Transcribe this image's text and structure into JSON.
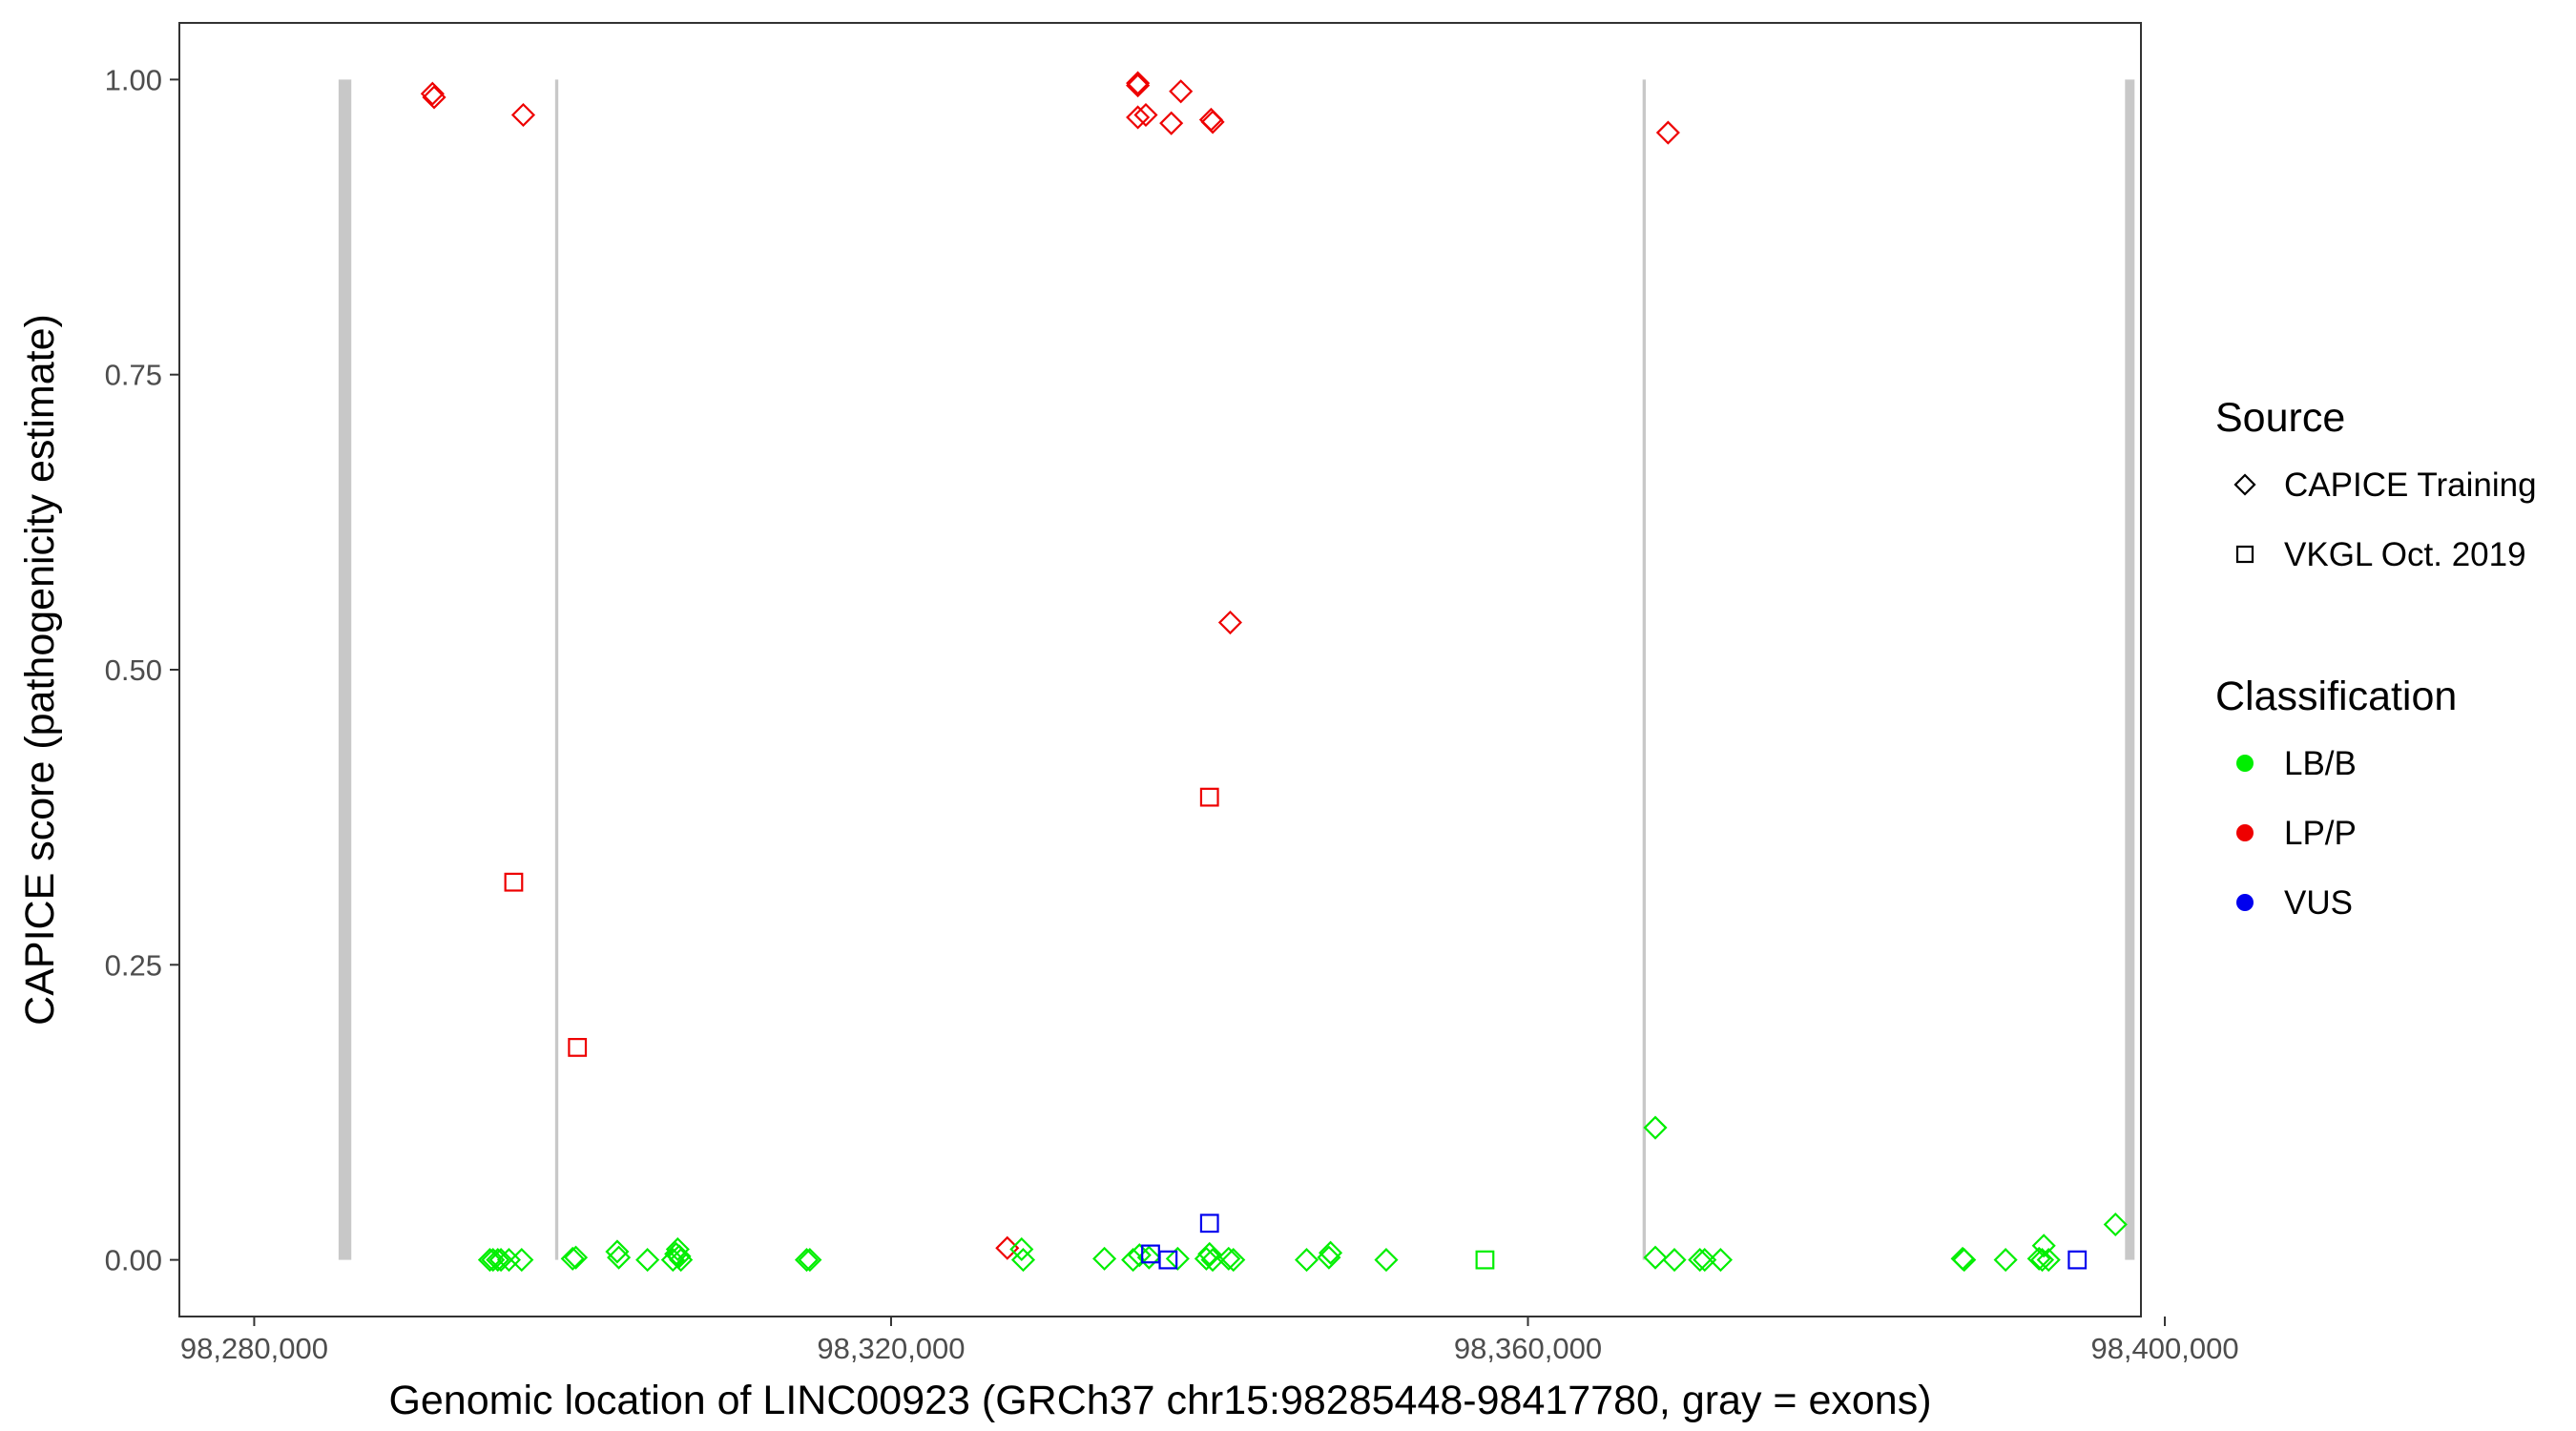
{
  "chart_data": {
    "type": "scatter",
    "xlabel": "Genomic location of LINC00923 (GRCh37 chr15:98285448-98417780, gray = exons)",
    "ylabel": "CAPICE score (pathogenicity estimate)",
    "xlim": [
      98275300,
      98398500
    ],
    "ylim": [
      -0.048,
      1.048
    ],
    "x_ticks": [
      98280000,
      98320000,
      98360000,
      98400000
    ],
    "x_tick_labels": [
      "98,280,000",
      "98,320,000",
      "98,360,000",
      "98,400,000"
    ],
    "y_ticks": [
      0,
      0.25,
      0.5,
      0.75,
      1.0
    ],
    "y_tick_labels": [
      "0.00",
      "0.25",
      "0.50",
      "0.75",
      "1.00"
    ],
    "grid": false,
    "legend_position": "right",
    "exons": [
      {
        "start": 98285300,
        "end": 98286100
      },
      {
        "start": 98298900,
        "end": 98299100
      },
      {
        "start": 98367200,
        "end": 98367400
      },
      {
        "start": 98397500,
        "end": 98398100
      }
    ],
    "legend": {
      "source_title": "Source",
      "sources": [
        {
          "key": "capice",
          "label": "CAPICE Training",
          "shape": "diamond"
        },
        {
          "key": "vkgl",
          "label": "VKGL Oct. 2019",
          "shape": "square"
        }
      ],
      "classification_title": "Classification",
      "classes": [
        {
          "key": "lbb",
          "label": "LB/B",
          "color": "#00ee00"
        },
        {
          "key": "lpp",
          "label": "LP/P",
          "color": "#ee0000"
        },
        {
          "key": "vus",
          "label": "VUS",
          "color": "#0000ee"
        }
      ]
    },
    "series": [
      {
        "source": "capice",
        "class": "lpp",
        "points": [
          [
            98291200,
            0.988
          ],
          [
            98291300,
            0.985
          ],
          [
            98296900,
            0.97
          ],
          [
            98335500,
            0.997
          ],
          [
            98335500,
            0.995
          ],
          [
            98335500,
            0.968
          ],
          [
            98336000,
            0.97
          ],
          [
            98337600,
            0.963
          ],
          [
            98338200,
            0.99
          ],
          [
            98340100,
            0.966
          ],
          [
            98340200,
            0.964
          ],
          [
            98341300,
            0.54
          ],
          [
            98368800,
            0.955
          ],
          [
            98327300,
            0.01
          ]
        ]
      },
      {
        "source": "vkgl",
        "class": "lpp",
        "points": [
          [
            98296300,
            0.32
          ],
          [
            98300300,
            0.18
          ],
          [
            98340000,
            0.392
          ]
        ]
      },
      {
        "source": "capice",
        "class": "lbb",
        "points": [
          [
            98294800,
            0.0
          ],
          [
            98295000,
            0.0
          ],
          [
            98295300,
            0.0
          ],
          [
            98295500,
            0.0
          ],
          [
            98296000,
            0.0
          ],
          [
            98296800,
            0.0
          ],
          [
            98300000,
            0.001
          ],
          [
            98300200,
            0.002
          ],
          [
            98302800,
            0.007
          ],
          [
            98302900,
            0.002
          ],
          [
            98304700,
            0.0
          ],
          [
            98306300,
            0.0
          ],
          [
            98306500,
            0.005
          ],
          [
            98306600,
            0.009
          ],
          [
            98306700,
            0.003
          ],
          [
            98306800,
            0.0
          ],
          [
            98314700,
            0.0
          ],
          [
            98314900,
            0.0
          ],
          [
            98328200,
            0.009
          ],
          [
            98328300,
            0.0
          ],
          [
            98333400,
            0.001
          ],
          [
            98335200,
            0.0
          ],
          [
            98335600,
            0.004
          ],
          [
            98336200,
            0.002
          ],
          [
            98338000,
            0.001
          ],
          [
            98339800,
            0.001
          ],
          [
            98340000,
            0.005
          ],
          [
            98340200,
            0.0
          ],
          [
            98341200,
            0.001
          ],
          [
            98341500,
            0.0
          ],
          [
            98346100,
            0.0
          ],
          [
            98347500,
            0.002
          ],
          [
            98347600,
            0.006
          ],
          [
            98351100,
            0.0
          ],
          [
            98368000,
            0.112
          ],
          [
            98368000,
            0.002
          ],
          [
            98370800,
            0.0
          ],
          [
            98371100,
            0.0
          ],
          [
            98372100,
            0.0
          ],
          [
            98369200,
            0.0
          ],
          [
            98387300,
            0.001
          ],
          [
            98387400,
            0.0
          ],
          [
            98390000,
            0.0
          ],
          [
            98392100,
            0.001
          ],
          [
            98392300,
            0.0
          ],
          [
            98392400,
            0.012
          ],
          [
            98392700,
            0.0
          ],
          [
            98396900,
            0.03
          ]
        ]
      },
      {
        "source": "vkgl",
        "class": "lbb",
        "points": [
          [
            98357300,
            0.0
          ]
        ]
      },
      {
        "source": "vkgl",
        "class": "vus",
        "points": [
          [
            98336300,
            0.005
          ],
          [
            98337400,
            0.0
          ],
          [
            98340000,
            0.031
          ],
          [
            98394500,
            0.0
          ]
        ]
      }
    ]
  }
}
